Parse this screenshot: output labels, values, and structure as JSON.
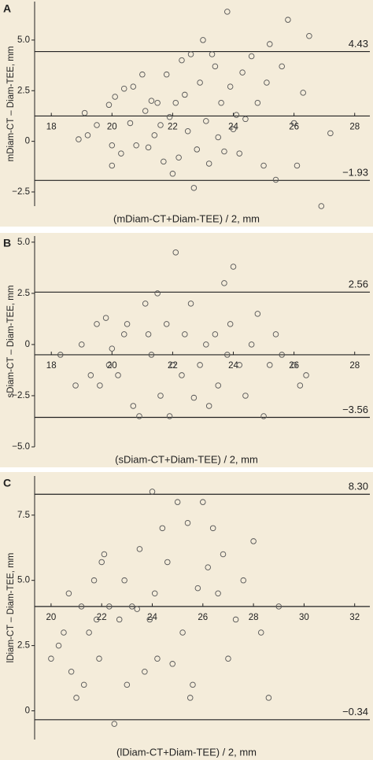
{
  "chart_data": [
    {
      "type": "scatter",
      "panel": "A",
      "x_label": "(mDiam-CT+Diam-TEE) / 2, mm",
      "y_label": "mDiam-CT – Diam-TEE, mm",
      "color": "#555555",
      "xlim": [
        17.45,
        28.5
      ],
      "ylim": [
        -3.2,
        6.9
      ],
      "xticks": [
        18,
        20,
        22,
        24,
        26,
        28
      ],
      "yticks": [
        {
          "value": 5,
          "label": "5.0"
        },
        {
          "value": 2.5,
          "label": "2.5"
        },
        0,
        {
          "value": -2.5,
          "label": "−2.5"
        }
      ],
      "mean": 1.25,
      "limits": [
        4.43,
        {
          "value": -1.93,
          "label": "−1.93"
        }
      ],
      "x": [
        18.9,
        19.1,
        19.2,
        19.5,
        19.9,
        20,
        20,
        20.1,
        20.3,
        20.4,
        20.6,
        20.7,
        20.8,
        21,
        21.1,
        21.2,
        21.3,
        21.4,
        21.5,
        21.6,
        21.7,
        21.8,
        21.9,
        22,
        22.1,
        22.2,
        22.3,
        22.4,
        22.5,
        22.6,
        22.7,
        22.8,
        22.9,
        23,
        23.1,
        23.2,
        23.3,
        23.4,
        23.5,
        23.6,
        23.7,
        23.8,
        23.9,
        24,
        24.1,
        24.2,
        24.3,
        24.4,
        24.6,
        24.8,
        25,
        25.1,
        25.2,
        25.4,
        25.6,
        25.8,
        26,
        26.1,
        26.3,
        26.5,
        26.9,
        27.2
      ],
      "values": [
        0.1,
        1.4,
        0.3,
        0.8,
        1.8,
        -0.2,
        -1.2,
        2.2,
        -0.6,
        2.6,
        0.9,
        2.7,
        -0.2,
        3.3,
        1.5,
        -0.3,
        2,
        0.3,
        1.9,
        0.8,
        -1,
        3.3,
        1.2,
        -1.6,
        1.9,
        -0.8,
        4,
        2.3,
        0.5,
        4.3,
        -2.3,
        -0.4,
        2.9,
        5,
        1,
        -1.1,
        4.3,
        3.7,
        0.2,
        1.9,
        -0.5,
        6.4,
        2.7,
        0.6,
        1.3,
        -0.6,
        3.4,
        1.1,
        4.2,
        1.9,
        -1.2,
        2.9,
        4.8,
        -1.9,
        3.7,
        6,
        0.9,
        -1.2,
        2.4,
        5.2,
        -3.2,
        0.4
      ]
    },
    {
      "type": "scatter",
      "panel": "B",
      "x_label": "(sDiam-CT+Diam-TEE) / 2, mm",
      "y_label": "sDiam-CT – Diam-TEE, mm",
      "color": "#555555",
      "xlim": [
        17.45,
        28.5
      ],
      "ylim": [
        -5,
        5.3
      ],
      "xticks": [
        18,
        20,
        22,
        24,
        26,
        28
      ],
      "yticks": [
        {
          "value": 5,
          "label": "5.0"
        },
        {
          "value": 2.5,
          "label": "2.5"
        },
        0,
        {
          "value": -2.5,
          "label": "−2.5"
        },
        {
          "value": -5,
          "label": "−5.0"
        }
      ],
      "mean": -0.5,
      "limits": [
        2.56,
        {
          "value": -3.56,
          "label": "−3.56"
        }
      ],
      "x": [
        18.3,
        18.8,
        19,
        19.3,
        19.5,
        19.6,
        19.8,
        19.9,
        20,
        20.2,
        20.4,
        20.5,
        20.7,
        20.9,
        21.1,
        21.2,
        21.3,
        21.5,
        21.6,
        21.8,
        21.9,
        22,
        22.1,
        22.3,
        22.4,
        22.6,
        22.7,
        22.9,
        23.1,
        23.2,
        23.4,
        23.5,
        23.7,
        23.8,
        23.9,
        24,
        24.2,
        24.4,
        24.6,
        24.8,
        25,
        25.2,
        25.4,
        25.6,
        26,
        26.2,
        26.4
      ],
      "values": [
        -0.5,
        -2,
        0,
        -1.5,
        1,
        -2,
        1.3,
        -1,
        -0.2,
        -1.5,
        0.5,
        1,
        -3,
        -3.5,
        2,
        0.5,
        -0.5,
        2.5,
        -2.5,
        1,
        -3.5,
        -1,
        4.5,
        -1.5,
        0.5,
        2,
        -2.6,
        -1,
        0,
        -3,
        0.5,
        -2,
        3,
        -0.5,
        1,
        3.8,
        -1,
        -2.5,
        0,
        1.5,
        -3.5,
        -1,
        0.5,
        -0.5,
        -1,
        -2,
        -1.5
      ]
    },
    {
      "type": "scatter",
      "panel": "C",
      "x_label": "(lDiam-CT+Diam-TEE) / 2, mm",
      "y_label": "lDiam-CT – Diam-TEE, mm",
      "color": "#555555",
      "xlim": [
        19.35,
        32.6
      ],
      "ylim": [
        -1.1,
        9
      ],
      "xticks": [
        20,
        22,
        24,
        26,
        28,
        30,
        32
      ],
      "yticks": [
        {
          "value": 7.5,
          "label": "7.5"
        },
        {
          "value": 5,
          "label": "5.0"
        },
        {
          "value": 2.5,
          "label": "2.5"
        },
        0
      ],
      "mean": 4,
      "limits": [
        {
          "value": 8.3,
          "label": "8.30"
        },
        {
          "value": -0.34,
          "label": "−0.34"
        }
      ],
      "x": [
        20,
        20.3,
        20.5,
        20.7,
        20.8,
        21,
        21.2,
        21.3,
        21.5,
        21.7,
        21.9,
        22,
        22.1,
        22.3,
        22.5,
        22.7,
        22.9,
        23,
        23.2,
        23.4,
        23.5,
        23.7,
        23.9,
        24,
        24.2,
        24.4,
        24.6,
        24.8,
        25,
        25.2,
        25.4,
        25.6,
        25.8,
        26,
        26.2,
        26.4,
        26.6,
        26.8,
        27,
        27.3,
        27.6,
        28,
        28.3,
        28.6,
        29,
        21.8,
        24.1,
        25.5
      ],
      "values": [
        2,
        2.5,
        3,
        4.5,
        1.5,
        0.5,
        4,
        1,
        3,
        5,
        2,
        5.7,
        6,
        4,
        -0.5,
        3.5,
        5,
        1,
        4,
        3.9,
        6.2,
        1.5,
        3.5,
        8.4,
        2,
        7,
        5.7,
        1.8,
        8,
        3,
        7.2,
        1,
        4.7,
        8,
        5.5,
        7,
        4.5,
        6,
        2,
        3.5,
        5,
        6.5,
        3,
        0.5,
        4,
        3.5,
        4.5,
        0.5
      ]
    }
  ]
}
